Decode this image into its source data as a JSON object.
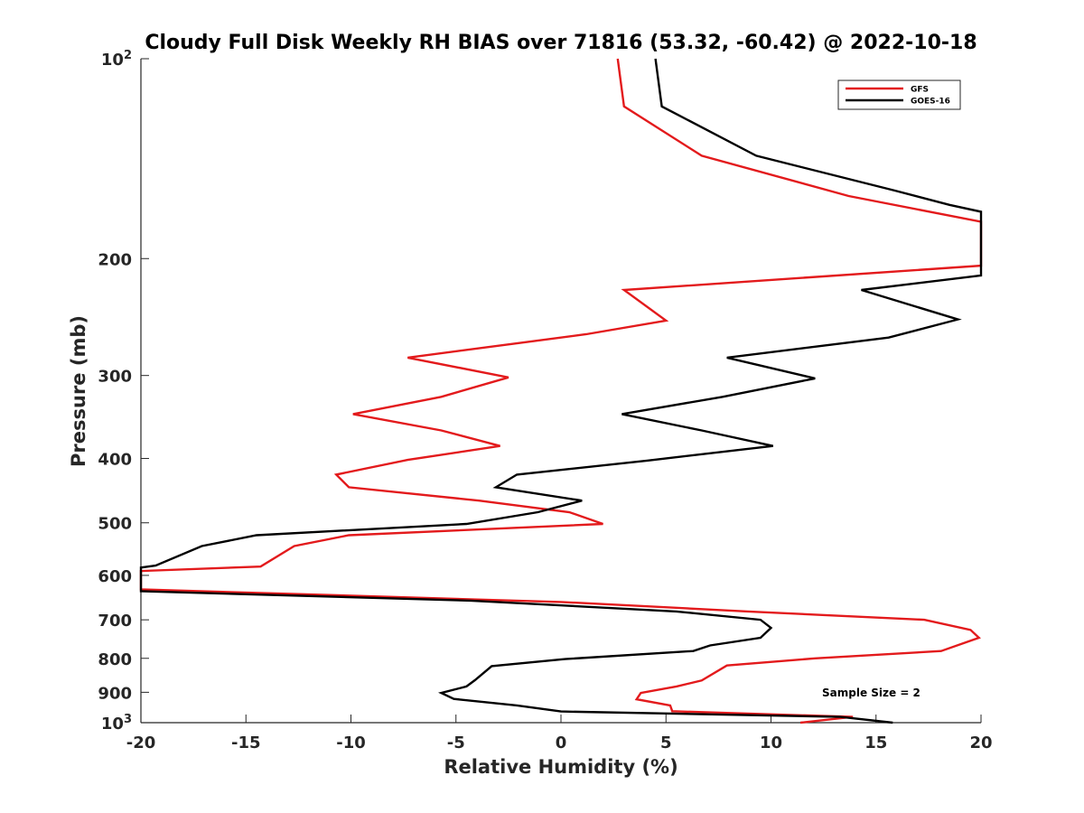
{
  "chart_data": {
    "type": "line",
    "title": "Cloudy Full Disk Weekly RH BIAS over 71816 (53.32, -60.42) @ 2022-10-18",
    "xlabel": "Relative Humidity (%)",
    "ylabel": "Pressure (mb)",
    "xlim": [
      -20,
      20
    ],
    "ylim": [
      100,
      1000
    ],
    "y_scale": "log",
    "y_reversed": true,
    "grid": false,
    "legend_position": "top-right",
    "x_ticks": [
      "-20",
      "-15",
      "-10",
      "-5",
      "0",
      "5",
      "10",
      "15",
      "20"
    ],
    "y_ticks": [
      {
        "value": 100,
        "base": "10",
        "exp": "2"
      },
      {
        "value": 200,
        "label": "200"
      },
      {
        "value": 300,
        "label": "300"
      },
      {
        "value": 400,
        "label": "400"
      },
      {
        "value": 500,
        "label": "500"
      },
      {
        "value": 600,
        "label": "600"
      },
      {
        "value": 700,
        "label": "700"
      },
      {
        "value": 800,
        "label": "800"
      },
      {
        "value": 900,
        "label": "900"
      },
      {
        "value": 1000,
        "base": "10",
        "exp": "3"
      }
    ],
    "annotation": "Sample Size = 2",
    "series": [
      {
        "name": "GFS",
        "color": "#e31a1c",
        "points": [
          {
            "x": 2.7,
            "p": 100
          },
          {
            "x": 3.0,
            "p": 118
          },
          {
            "x": 6.7,
            "p": 140
          },
          {
            "x": 13.7,
            "p": 161
          },
          {
            "x": 20.0,
            "p": 176
          },
          {
            "x": 20.0,
            "p": 205
          },
          {
            "x": 3.0,
            "p": 223
          },
          {
            "x": 5.0,
            "p": 248
          },
          {
            "x": 1.2,
            "p": 260
          },
          {
            "x": -7.3,
            "p": 282
          },
          {
            "x": -2.5,
            "p": 302
          },
          {
            "x": -5.7,
            "p": 323
          },
          {
            "x": -9.9,
            "p": 343
          },
          {
            "x": -5.7,
            "p": 363
          },
          {
            "x": -2.9,
            "p": 383
          },
          {
            "x": -7.3,
            "p": 402
          },
          {
            "x": -10.7,
            "p": 423
          },
          {
            "x": -10.1,
            "p": 442
          },
          {
            "x": -3.9,
            "p": 463
          },
          {
            "x": 0.4,
            "p": 482
          },
          {
            "x": 2.0,
            "p": 502
          },
          {
            "x": -10.1,
            "p": 522
          },
          {
            "x": -12.7,
            "p": 542
          },
          {
            "x": -14.3,
            "p": 582
          },
          {
            "x": -20.0,
            "p": 591
          },
          {
            "x": -20.0,
            "p": 630
          },
          {
            "x": 0.0,
            "p": 658
          },
          {
            "x": 8.9,
            "p": 680
          },
          {
            "x": 17.3,
            "p": 700
          },
          {
            "x": 19.5,
            "p": 725
          },
          {
            "x": 19.9,
            "p": 745
          },
          {
            "x": 18.1,
            "p": 780
          },
          {
            "x": 12.1,
            "p": 800
          },
          {
            "x": 7.9,
            "p": 820
          },
          {
            "x": 6.7,
            "p": 864
          },
          {
            "x": 5.5,
            "p": 882
          },
          {
            "x": 3.8,
            "p": 902
          },
          {
            "x": 3.6,
            "p": 922
          },
          {
            "x": 5.2,
            "p": 942
          },
          {
            "x": 5.3,
            "p": 961
          },
          {
            "x": 13.9,
            "p": 980
          },
          {
            "x": 11.4,
            "p": 1000
          }
        ]
      },
      {
        "name": "GOES-16",
        "color": "#000000",
        "points": [
          {
            "x": 4.5,
            "p": 100
          },
          {
            "x": 4.8,
            "p": 118
          },
          {
            "x": 9.3,
            "p": 140
          },
          {
            "x": 15.9,
            "p": 158
          },
          {
            "x": 18.5,
            "p": 166
          },
          {
            "x": 20.0,
            "p": 170
          },
          {
            "x": 20.0,
            "p": 212
          },
          {
            "x": 14.3,
            "p": 223
          },
          {
            "x": 18.9,
            "p": 247
          },
          {
            "x": 15.6,
            "p": 263
          },
          {
            "x": 7.9,
            "p": 282
          },
          {
            "x": 12.1,
            "p": 303
          },
          {
            "x": 7.7,
            "p": 323
          },
          {
            "x": 2.9,
            "p": 343
          },
          {
            "x": 6.7,
            "p": 363
          },
          {
            "x": 10.1,
            "p": 383
          },
          {
            "x": 4.1,
            "p": 403
          },
          {
            "x": -2.1,
            "p": 423
          },
          {
            "x": -3.1,
            "p": 442
          },
          {
            "x": 1.0,
            "p": 463
          },
          {
            "x": -1.1,
            "p": 482
          },
          {
            "x": -4.5,
            "p": 502
          },
          {
            "x": -14.5,
            "p": 522
          },
          {
            "x": -17.1,
            "p": 542
          },
          {
            "x": -19.3,
            "p": 580
          },
          {
            "x": -20.0,
            "p": 584
          },
          {
            "x": -20.0,
            "p": 634
          },
          {
            "x": -4.3,
            "p": 655
          },
          {
            "x": 5.5,
            "p": 680
          },
          {
            "x": 9.5,
            "p": 700
          },
          {
            "x": 10.0,
            "p": 720
          },
          {
            "x": 9.5,
            "p": 745
          },
          {
            "x": 7.1,
            "p": 765
          },
          {
            "x": 6.3,
            "p": 780
          },
          {
            "x": 0.2,
            "p": 802
          },
          {
            "x": -3.3,
            "p": 822
          },
          {
            "x": -4.1,
            "p": 863
          },
          {
            "x": -4.5,
            "p": 882
          },
          {
            "x": -5.7,
            "p": 902
          },
          {
            "x": -5.1,
            "p": 921
          },
          {
            "x": -2.1,
            "p": 942
          },
          {
            "x": 0.0,
            "p": 962
          },
          {
            "x": 13.3,
            "p": 980
          },
          {
            "x": 15.8,
            "p": 1000
          }
        ]
      }
    ]
  }
}
